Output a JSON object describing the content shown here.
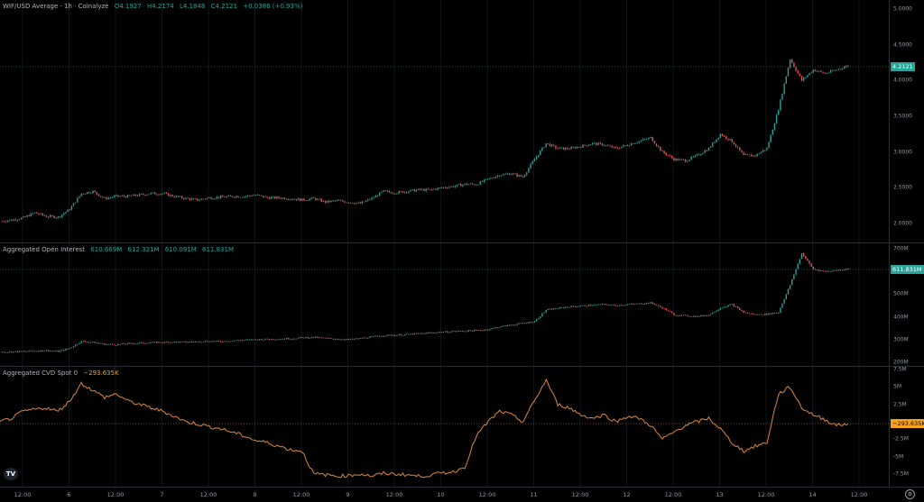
{
  "colors": {
    "up": "#26a69a",
    "down": "#ef5350",
    "cvd": "#e0883a",
    "badge_price": "#26a69a",
    "badge_cvd": "#f7a21b"
  },
  "legends": {
    "price": {
      "title": "WIF/USD Average · 1h · Coinalyze",
      "o": "O4.1927",
      "h": "H4.2174",
      "l": "L4.1848",
      "c": "C4.2121",
      "chg": "+0.0386 (+0.93%)"
    },
    "oi": {
      "title": "Aggregated Open Interest",
      "o": "610.669M",
      "h": "612.321M",
      "l": "610.091M",
      "c": "611.831M"
    },
    "cvd": {
      "title": "Aggregated CVD Spot 0",
      "value": "−293.635K"
    }
  },
  "badges": {
    "price": "4.2121",
    "oi": "611.831M",
    "cvd": "−293.635K"
  },
  "chart_data": [
    {
      "type": "candlestick",
      "title": "WIF/USD Average · 1h · Coinalyze",
      "ylim": [
        1.85,
        5.1
      ],
      "y_ticks": [
        "5.0000",
        "4.5000",
        "4.0000",
        "3.5000",
        "3.0000",
        "2.5000",
        "2.0000"
      ],
      "close_path": [
        2.03,
        2.05,
        2.08,
        2.15,
        2.1,
        2.09,
        2.2,
        2.42,
        2.45,
        2.35,
        2.38,
        2.38,
        2.4,
        2.42,
        2.42,
        2.38,
        2.35,
        2.33,
        2.36,
        2.37,
        2.38,
        2.38,
        2.4,
        2.36,
        2.36,
        2.35,
        2.33,
        2.35,
        2.3,
        2.32,
        2.3,
        2.28,
        2.35,
        2.45,
        2.43,
        2.45,
        2.47,
        2.47,
        2.5,
        2.52,
        2.55,
        2.55,
        2.62,
        2.68,
        2.7,
        2.65,
        2.9,
        3.12,
        3.05,
        3.05,
        3.08,
        3.12,
        3.1,
        3.05,
        3.1,
        3.15,
        3.2,
        3.0,
        2.9,
        2.88,
        2.95,
        3.05,
        3.25,
        3.15,
        2.95,
        2.95,
        3.05,
        3.6,
        4.3,
        4.0,
        4.15,
        4.1,
        4.15,
        4.21
      ]
    },
    {
      "type": "candlestick",
      "title": "Aggregated Open Interest",
      "unit": "M",
      "ylim": [
        190,
        720
      ],
      "y_ticks": [
        "700M",
        "500M",
        "400M",
        "300M",
        "200M"
      ],
      "close_path": [
        245,
        246,
        248,
        250,
        252,
        248,
        262,
        292,
        288,
        280,
        278,
        282,
        285,
        287,
        288,
        290,
        289,
        291,
        293,
        292,
        295,
        298,
        300,
        302,
        303,
        305,
        308,
        310,
        306,
        303,
        300,
        305,
        312,
        318,
        320,
        322,
        326,
        330,
        333,
        336,
        338,
        340,
        345,
        356,
        365,
        372,
        380,
        430,
        438,
        445,
        448,
        452,
        455,
        450,
        455,
        458,
        462,
        440,
        410,
        405,
        402,
        408,
        440,
        455,
        420,
        410,
        412,
        420,
        540,
        680,
        610,
        600,
        605,
        611.8
      ]
    },
    {
      "type": "line",
      "title": "Aggregated CVD Spot 0",
      "unit": "M",
      "ylim": [
        -9.5,
        9.5
      ],
      "y_ticks": [
        "7.5M",
        "5M",
        "2.5M",
        "-2.5M",
        "-5M",
        "-7.5M"
      ],
      "values": [
        0,
        0.5,
        1.5,
        1.8,
        2,
        1.5,
        3,
        5.5,
        4.5,
        3.5,
        4,
        3,
        2.5,
        2,
        1.5,
        0.8,
        0,
        -0.3,
        -0.7,
        -1,
        -1.5,
        -2,
        -2.7,
        -3,
        -3.5,
        -4,
        -4.2,
        -7.5,
        -7.6,
        -7.8,
        -7.7,
        -7.5,
        -7.8,
        -7.4,
        -7.5,
        -7.6,
        -7.8,
        -7.7,
        -7.3,
        -7.2,
        -6.5,
        -2,
        0,
        1.5,
        1,
        0,
        3,
        6,
        2.5,
        2,
        1,
        0.5,
        1,
        0,
        0.8,
        0.5,
        -0.5,
        -2.5,
        -1.5,
        -0.5,
        0,
        0.5,
        -1,
        -3,
        -4.2,
        -3.5,
        -3,
        4,
        5,
        2,
        1,
        0.3,
        -0.5,
        -0.3
      ]
    },
    {
      "type": "time_axis",
      "labels": [
        "12:00",
        "6",
        "12:00",
        "7",
        "12:00",
        "8",
        "12:00",
        "9",
        "12:00",
        "10",
        "12:00",
        "11",
        "12:00",
        "12",
        "12:00",
        "13",
        "12:00",
        "14",
        "12:00"
      ]
    }
  ]
}
